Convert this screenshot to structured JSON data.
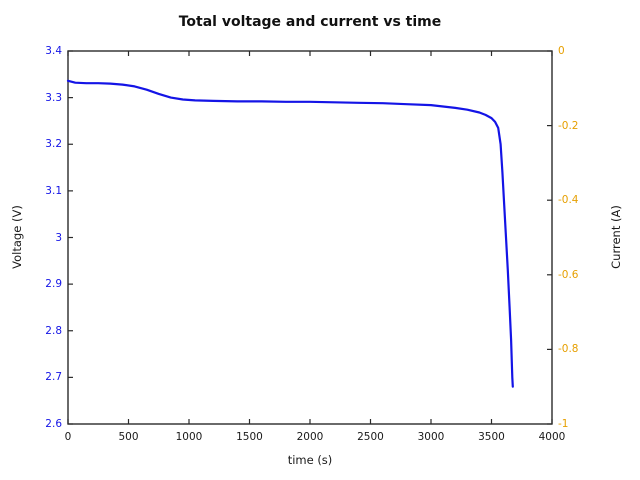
{
  "chart_data": {
    "type": "line",
    "title": "Total voltage and current vs time",
    "xlabel": "time (s)",
    "ylabel_left": "Voltage (V)",
    "ylabel_right": "Current (A)",
    "xlim": [
      0,
      4000
    ],
    "ylim_left": [
      2.6,
      3.4
    ],
    "ylim_right": [
      -1,
      0
    ],
    "grid": false,
    "legend": "none",
    "background": "#ffffff",
    "border_color": "#2a2a2a",
    "axis_colors": {
      "left": "#1414e6",
      "right": "#e69f00",
      "bottom": "#1a1a1a"
    },
    "x_ticks": [
      {
        "value": 0,
        "label": "0"
      },
      {
        "value": 500,
        "label": "500"
      },
      {
        "value": 1000,
        "label": "1000"
      },
      {
        "value": 1500,
        "label": "1500"
      },
      {
        "value": 2000,
        "label": "2000"
      },
      {
        "value": 2500,
        "label": "2500"
      },
      {
        "value": 3000,
        "label": "3000"
      },
      {
        "value": 3500,
        "label": "3500"
      },
      {
        "value": 4000,
        "label": "4000"
      }
    ],
    "y_left_ticks": [
      {
        "value": 3.4,
        "label": "3.4"
      },
      {
        "value": 3.3,
        "label": "3.3"
      },
      {
        "value": 3.2,
        "label": "3.2"
      },
      {
        "value": 3.1,
        "label": "3.1"
      },
      {
        "value": 3.0,
        "label": "3"
      },
      {
        "value": 2.9,
        "label": "2.9"
      },
      {
        "value": 2.8,
        "label": "2.8"
      },
      {
        "value": 2.7,
        "label": "2.7"
      },
      {
        "value": 2.6,
        "label": "2.6"
      }
    ],
    "y_right_ticks": [
      {
        "value": 0,
        "label": "0"
      },
      {
        "value": -0.2,
        "label": "-0.2"
      },
      {
        "value": -0.4,
        "label": "-0.4"
      },
      {
        "value": -0.6,
        "label": "-0.6"
      },
      {
        "value": -0.8,
        "label": "-0.8"
      },
      {
        "value": -1,
        "label": "-1"
      }
    ],
    "series": [
      {
        "name": "Total voltage",
        "axis": "left",
        "color": "#1414e6",
        "x": [
          0,
          60,
          150,
          250,
          350,
          450,
          550,
          650,
          750,
          850,
          950,
          1050,
          1200,
          1400,
          1600,
          1800,
          2000,
          2200,
          2400,
          2600,
          2800,
          3000,
          3100,
          3200,
          3300,
          3400,
          3450,
          3500,
          3530,
          3555,
          3575,
          3590,
          3605,
          3620,
          3635,
          3650,
          3662,
          3672,
          3676
        ],
        "y": [
          3.336,
          3.332,
          3.331,
          3.331,
          3.33,
          3.328,
          3.324,
          3.317,
          3.308,
          3.3,
          3.296,
          3.294,
          3.293,
          3.292,
          3.292,
          3.291,
          3.291,
          3.29,
          3.289,
          3.288,
          3.286,
          3.284,
          3.281,
          3.278,
          3.274,
          3.268,
          3.263,
          3.256,
          3.248,
          3.235,
          3.2,
          3.14,
          3.07,
          3.0,
          2.93,
          2.85,
          2.78,
          2.7,
          2.68
        ]
      }
    ]
  }
}
